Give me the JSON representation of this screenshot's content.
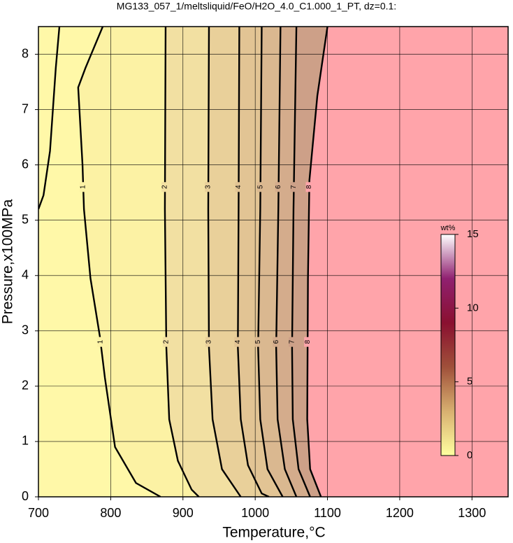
{
  "chart_data": {
    "type": "contour",
    "title": "MG133_057_1/meltsliquid/FeO/H2O_4.0_C1.000_1_PT, dz=0.1:",
    "x_label": "Temperature,°C",
    "y_label": "Pressure,x100MPa",
    "xlim": [
      700,
      1350
    ],
    "ylim": [
      0,
      8.5
    ],
    "xticks": [
      700,
      800,
      900,
      1000,
      1100,
      1200,
      1300
    ],
    "yticks": [
      0,
      1,
      2,
      3,
      4,
      5,
      6,
      7,
      8
    ],
    "grid": true,
    "background": "#fff8a8",
    "contours": [
      {
        "level": 1,
        "x": [
          789,
          765,
          755,
          761,
          763,
          772,
          785,
          792,
          806,
          835,
          869
        ],
        "y": [
          8.5,
          7.75,
          7.4,
          6.0,
          5.2,
          3.95,
          2.9,
          2.15,
          0.9,
          0.25,
          0
        ],
        "fill": "#fcf2a4"
      },
      {
        "level": 1,
        "x": [
          729,
          724,
          716,
          707,
          700
        ],
        "y": [
          8.5,
          7.75,
          6.25,
          5.45,
          5.2
        ]
      },
      {
        "level": 2,
        "x": [
          876,
          875,
          877,
          881,
          893,
          912,
          922
        ],
        "y": [
          8.5,
          5.2,
          2.7,
          1.4,
          0.65,
          0.13,
          0
        ],
        "fill": "#f2e0a2"
      },
      {
        "level": 3,
        "x": [
          936,
          935,
          936,
          941,
          954,
          980
        ],
        "y": [
          8.5,
          5.2,
          2.7,
          1.4,
          0.5,
          0
        ],
        "fill": "#e9d09a"
      },
      {
        "level": 4,
        "x": [
          978,
          977,
          976,
          980,
          990,
          1009,
          1019
        ],
        "y": [
          8.5,
          5.2,
          2.7,
          1.4,
          0.57,
          0.06,
          0
        ],
        "fill": "#e2c494"
      },
      {
        "level": 5,
        "x": [
          1009,
          1007,
          1004,
          1007,
          1017,
          1038
        ],
        "y": [
          8.5,
          5.2,
          2.7,
          1.4,
          0.5,
          0
        ],
        "fill": "#dab890"
      },
      {
        "level": 6,
        "x": [
          1035,
          1032,
          1029,
          1031,
          1041,
          1057
        ],
        "y": [
          8.5,
          5.2,
          2.7,
          1.4,
          0.5,
          0
        ],
        "fill": "#d4ac8c"
      },
      {
        "level": 7,
        "x": [
          1057,
          1053,
          1051,
          1052,
          1060,
          1076
        ],
        "y": [
          8.5,
          5.2,
          2.7,
          1.4,
          0.5,
          0
        ],
        "fill": "#cda088"
      },
      {
        "level": 8,
        "x": [
          1100,
          1086,
          1075,
          1073,
          1072,
          1076,
          1091
        ],
        "y": [
          8.5,
          7.25,
          5.72,
          3.94,
          1.4,
          0.5,
          0
        ],
        "fill": "#ffa4aa"
      }
    ],
    "colorbar": {
      "label": "wt%",
      "lim": [
        0,
        15
      ],
      "ticks": [
        0,
        5,
        10,
        15
      ],
      "colors": [
        "#ffffa0",
        "#d8b070",
        "#a0503a",
        "#8a1030",
        "#902070",
        "#ffffff"
      ]
    }
  }
}
